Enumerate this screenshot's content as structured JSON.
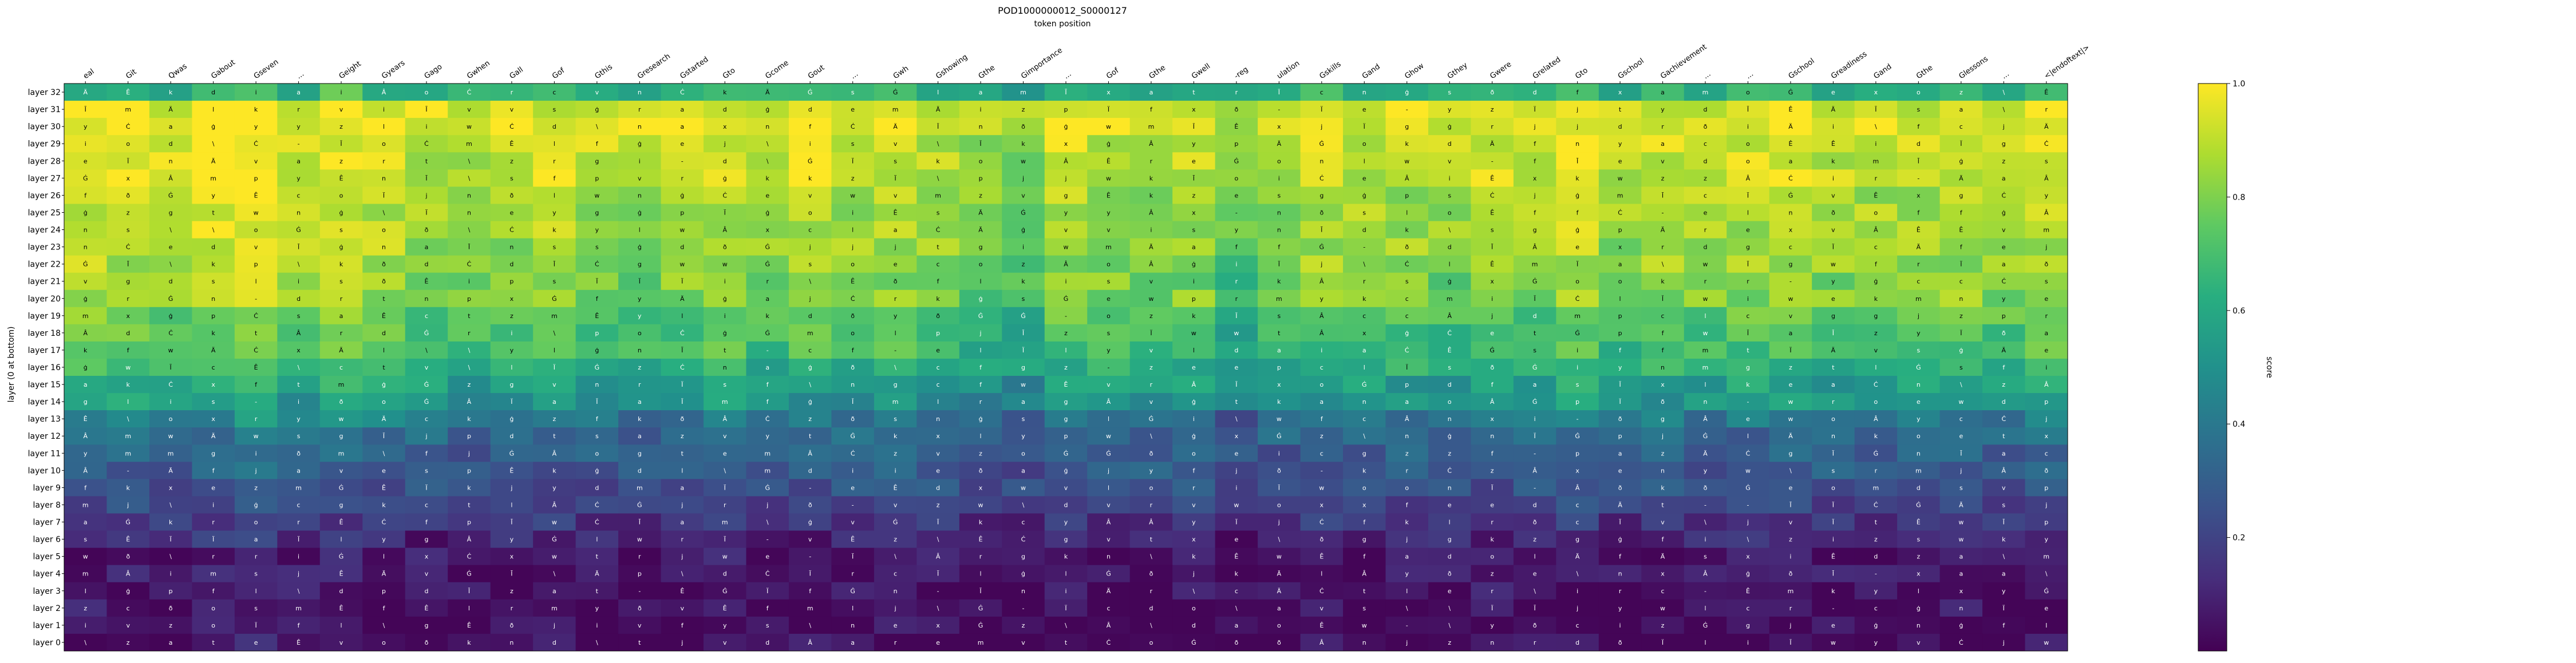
{
  "chart_data": {
    "type": "heatmap",
    "title": "POD1000000012_S0000127",
    "subtitle": "token position",
    "ylabel": "layer (0 at bottom)",
    "colorbar": {
      "label": "score",
      "range": [
        0,
        1
      ],
      "ticks": [
        "0.2",
        "0.4",
        "0.6",
        "0.8",
        "1.0"
      ],
      "colormap": "viridis"
    },
    "tokens": [
      "eal",
      "Git",
      "Qwas",
      "Gabout",
      "Gseven",
      "...",
      "Geight",
      "Gyears",
      "Gago",
      "Gwhen",
      "Gall",
      "Gof",
      "Gthis",
      "Gresearch",
      "Gstarted",
      "Gto",
      "Gcome",
      "Gout",
      "...",
      "Gwh",
      "Gshowing",
      "Gthe",
      "Gimportance",
      "...",
      "Gof",
      "Gthe",
      "Gwell",
      "-reg",
      "ulation",
      "Gskills",
      "Gand",
      "Ghow",
      "Gthey",
      "Gwere",
      "Grelated",
      "Gto",
      "Gschool",
      "Gachievement",
      "...",
      "...",
      "Gschool",
      "Greadiness",
      "Gand",
      "Gthe",
      "Glessons",
      "...",
      "<|endoftext|>"
    ],
    "layers": [
      "layer 32",
      "layer 31",
      "layer 30",
      "layer 29",
      "layer 28",
      "layer 27",
      "layer 26",
      "layer 25",
      "layer 24",
      "layer 23",
      "layer 22",
      "layer 21",
      "layer 20",
      "layer 19",
      "layer 18",
      "layer 17",
      "layer 16",
      "layer 15",
      "layer 14",
      "layer 13",
      "layer 12",
      "layer 11",
      "layer 10",
      "layer 9",
      "layer 8",
      "layer 7",
      "layer 6",
      "layer 5",
      "layer 4",
      "layer 3",
      "layer 2",
      "layer 1",
      "layer 0"
    ],
    "layer_score_profile": [
      0.62,
      0.93,
      0.95,
      0.9,
      0.9,
      0.9,
      0.86,
      0.85,
      0.85,
      0.84,
      0.82,
      0.79,
      0.8,
      0.72,
      0.7,
      0.68,
      0.62,
      0.55,
      0.5,
      0.38,
      0.33,
      0.3,
      0.28,
      0.24,
      0.2,
      0.15,
      0.1,
      0.06,
      0.05,
      0.04,
      0.03,
      0.02,
      0.02
    ],
    "token_score_offsets": [
      0.06,
      0.06,
      0.02,
      0.1,
      0.14,
      0.02,
      0.08,
      0.04,
      0.0,
      -0.02,
      0.0,
      0.02,
      0.0,
      -0.02,
      0.02,
      0.04,
      -0.02,
      0.02,
      0.0,
      0.02,
      0.0,
      -0.06,
      -0.08,
      0.02,
      0.0,
      -0.02,
      0.0,
      -0.1,
      -0.04,
      0.02,
      0.0,
      0.0,
      -0.02,
      0.02,
      0.0,
      0.06,
      -0.02,
      0.02,
      0.0,
      0.02,
      0.04,
      0.0,
      0.0,
      0.0,
      0.02,
      0.0,
      0.04
    ],
    "cell_glyphs": [
      "Ä",
      "d",
      "w",
      "t",
      "n",
      "i",
      "y",
      "a",
      "s",
      "k",
      "l",
      "o",
      "c",
      "e",
      "g",
      "m",
      "r",
      "f",
      "v",
      "x",
      "p",
      "j",
      "z",
      "Ê",
      "Ċ",
      "\\",
      "-",
      "ģ",
      "ð",
      "Ï",
      "Ġ",
      "Ī",
      "Â"
    ]
  }
}
